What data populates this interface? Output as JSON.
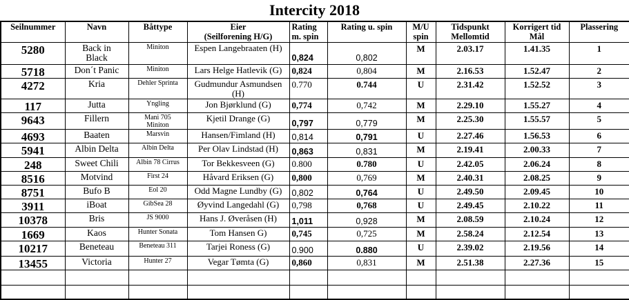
{
  "title": "Intercity 2018",
  "table": {
    "headers": [
      {
        "key": "seilnummer",
        "lines": [
          "Seilnummer"
        ]
      },
      {
        "key": "navn",
        "lines": [
          "Navn"
        ]
      },
      {
        "key": "battype",
        "lines": [
          "Båttype"
        ]
      },
      {
        "key": "eier",
        "lines": [
          "Eier",
          "(Seilforening H/G)"
        ]
      },
      {
        "key": "rating-m-spin",
        "lines": [
          "Rating",
          "m. spin"
        ]
      },
      {
        "key": "rating-u-spin",
        "lines": [
          "Rating u. spin"
        ]
      },
      {
        "key": "mu-spin",
        "lines": [
          "M/U",
          "spin"
        ]
      },
      {
        "key": "tidspunkt-mellomtid",
        "lines": [
          "Tidspunkt",
          "Mellomtid"
        ]
      },
      {
        "key": "korrigert-tid-mal",
        "lines": [
          "Korrigert tid",
          "Mål"
        ]
      },
      {
        "key": "plassering",
        "lines": [
          "Plassering"
        ]
      }
    ],
    "rows": [
      {
        "seilnummer": "5280",
        "navn": "Back in\nBlack",
        "battype": "Miniton",
        "eier": "Espen Langebraaten (H)",
        "rating_m": "0,824",
        "rating_m_bold": true,
        "rating_u": "0,802",
        "rating_u_bold": false,
        "rating_font": "sans",
        "mu_spin": "M",
        "tidspunkt": "2.03.17",
        "korrigert": "1.41.35",
        "plassering": "1"
      },
      {
        "seilnummer": "5718",
        "navn": "Don´t Panic",
        "battype": "Miniton",
        "eier": "Lars Helge Hatlevik (G)",
        "rating_m": "0,824",
        "rating_m_bold": true,
        "rating_u": "0,804",
        "rating_u_bold": false,
        "rating_font": "serif",
        "mu_spin": "M",
        "tidspunkt": "2.16.53",
        "korrigert": "1.52.47",
        "plassering": "2"
      },
      {
        "seilnummer": "4272",
        "navn": "Kria",
        "battype": "Dehler Sprinta",
        "eier": "Gudmundur Asmundsen (H)",
        "rating_m": "0.770",
        "rating_m_bold": false,
        "rating_u": "0.744",
        "rating_u_bold": true,
        "rating_font": "serif",
        "mu_spin": "U",
        "tidspunkt": "2.31.42",
        "korrigert": "1.52.52",
        "plassering": "3"
      },
      {
        "seilnummer": "117",
        "navn": "Jutta",
        "battype": "Yngling",
        "eier": "Jon Bjørklund (G)",
        "rating_m": "0,774",
        "rating_m_bold": true,
        "rating_u": "0,742",
        "rating_u_bold": false,
        "rating_font": "serif",
        "mu_spin": "M",
        "tidspunkt": "2.29.10",
        "korrigert": "1.55.27",
        "plassering": "4"
      },
      {
        "seilnummer": "9643",
        "navn": "Fillern",
        "battype": "Mani 705\nMiniton",
        "eier": "Kjetil Drange (G)",
        "rating_m": "0,797",
        "rating_m_bold": true,
        "rating_u": "0,779",
        "rating_u_bold": false,
        "rating_font": "sans",
        "mu_spin": "M",
        "tidspunkt": "2.25.30",
        "korrigert": "1.55.57",
        "plassering": "5"
      },
      {
        "seilnummer": "4693",
        "navn": "Baaten",
        "battype": "Marsvin",
        "eier": "Hansen/Fimland (H)",
        "rating_m": "0,814",
        "rating_m_bold": false,
        "rating_u": "0,791",
        "rating_u_bold": true,
        "rating_font": "sans",
        "mu_spin": "U",
        "tidspunkt": "2.27.46",
        "korrigert": "1.56.53",
        "plassering": "6"
      },
      {
        "seilnummer": "5941",
        "navn": "Albin Delta",
        "battype": "Albin Delta",
        "eier": "Per Olav Lindstad (H)",
        "rating_m": "0,863",
        "rating_m_bold": true,
        "rating_u": "0,831",
        "rating_u_bold": false,
        "rating_font": "sans",
        "mu_spin": "M",
        "tidspunkt": "2.19.41",
        "korrigert": "2.00.33",
        "plassering": "7"
      },
      {
        "seilnummer": "248",
        "navn": "Sweet Chili",
        "battype": "Albin 78 Cirrus",
        "eier": "Tor Bekkesveen (G)",
        "rating_m": "0.800",
        "rating_m_bold": false,
        "rating_u": "0.780",
        "rating_u_bold": true,
        "rating_font": "serif",
        "mu_spin": "U",
        "tidspunkt": "2.42.05",
        "korrigert": "2.06.24",
        "plassering": "8"
      },
      {
        "seilnummer": "8516",
        "navn": "Motvind",
        "battype": "First 24",
        "eier": "Håvard Eriksen (G)",
        "rating_m": "0,800",
        "rating_m_bold": true,
        "rating_u": "0,769",
        "rating_u_bold": false,
        "rating_font": "serif",
        "mu_spin": "M",
        "tidspunkt": "2.40.31",
        "korrigert": "2.08.25",
        "plassering": "9"
      },
      {
        "seilnummer": "8751",
        "navn": "Bufo B",
        "battype": "Eol 20",
        "eier": "Odd Magne Lundby (G)",
        "rating_m": "0,802",
        "rating_m_bold": false,
        "rating_u": "0,764",
        "rating_u_bold": true,
        "rating_font": "sans",
        "mu_spin": "U",
        "tidspunkt": "2.49.50",
        "korrigert": "2.09.45",
        "plassering": "10"
      },
      {
        "seilnummer": "3911",
        "navn": "iBoat",
        "battype": "GibSea 28",
        "eier": "Øyvind Langedahl (G)",
        "rating_m": "0,798",
        "rating_m_bold": false,
        "rating_u": "0,768",
        "rating_u_bold": true,
        "rating_font": "serif",
        "mu_spin": "U",
        "tidspunkt": "2.49.45",
        "korrigert": "2.10.22",
        "plassering": "11"
      },
      {
        "seilnummer": "10378",
        "navn": "Bris",
        "battype": "JS 9000",
        "eier": "Hans J. Øveråsen (H)",
        "rating_m": "1,011",
        "rating_m_bold": true,
        "rating_u": "0,928",
        "rating_u_bold": false,
        "rating_font": "sans",
        "mu_spin": "M",
        "tidspunkt": "2.08.59",
        "korrigert": "2.10.24",
        "plassering": "12"
      },
      {
        "seilnummer": "1669",
        "navn": "Kaos",
        "battype": "Hunter Sonata",
        "eier": "Tom Hansen G)",
        "rating_m": "0,745",
        "rating_m_bold": true,
        "rating_u": "0,725",
        "rating_u_bold": false,
        "rating_font": "serif",
        "mu_spin": "M",
        "tidspunkt": "2.58.24",
        "korrigert": "2.12.54",
        "plassering": "13"
      },
      {
        "seilnummer": "10217",
        "navn": "Beneteau",
        "battype": "Beneteau 311",
        "eier": "Tarjei Roness (G)",
        "rating_m": "0.900",
        "rating_m_bold": false,
        "rating_u": "0.880",
        "rating_u_bold": true,
        "rating_font": "sans",
        "mu_spin": "U",
        "tidspunkt": "2.39.02",
        "korrigert": "2.19.56",
        "plassering": "14"
      },
      {
        "seilnummer": "13455",
        "navn": "Victoria",
        "battype": "Hunter 27",
        "eier": "Vegar Tømta (G)",
        "rating_m": "0,860",
        "rating_m_bold": true,
        "rating_u": "0,831",
        "rating_u_bold": false,
        "rating_font": "serif",
        "mu_spin": "M",
        "tidspunkt": "2.51.38",
        "korrigert": "2.27.36",
        "plassering": "15"
      }
    ],
    "empty_rows": 2
  }
}
